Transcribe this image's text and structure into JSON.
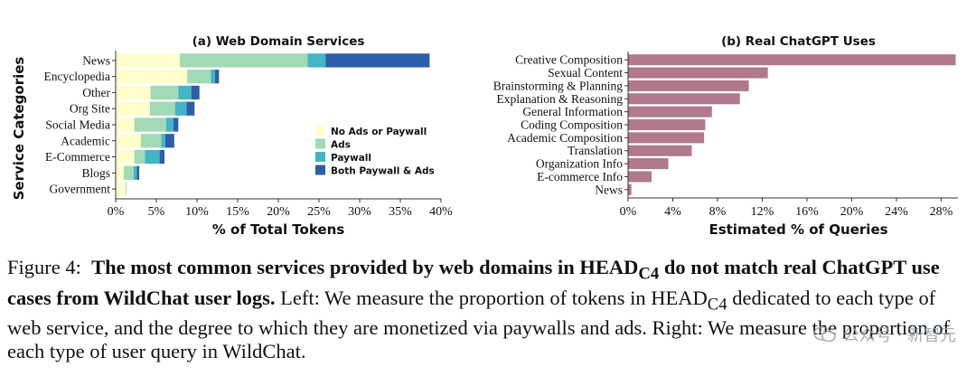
{
  "chart_data": [
    {
      "type": "bar",
      "orientation": "horizontal",
      "stacked": true,
      "title": "(a) Web Domain Services",
      "xlabel": "% of Total Tokens",
      "ylabel": "Service Categories",
      "categories": [
        "News",
        "Encyclopedia",
        "Other",
        "Org Site",
        "Social Media",
        "Academic",
        "E-Commerce",
        "Blogs",
        "Government"
      ],
      "xlim": [
        0,
        40
      ],
      "xticks": [
        "0%",
        "5%",
        "10%",
        "15%",
        "20%",
        "25%",
        "30%",
        "35%",
        "40%"
      ],
      "legend_position": "right",
      "series": [
        {
          "name": "No Ads or Paywall",
          "color": "#ffffcc",
          "values": [
            7.9,
            8.8,
            4.3,
            4.2,
            2.3,
            3.1,
            2.3,
            1.0,
            1.2
          ]
        },
        {
          "name": "Ads",
          "color": "#a1dab4",
          "values": [
            15.7,
            2.9,
            3.4,
            3.1,
            3.9,
            2.5,
            1.3,
            1.2,
            0.1
          ]
        },
        {
          "name": "Paywall",
          "color": "#41b6c4",
          "values": [
            2.2,
            0.5,
            1.6,
            1.4,
            0.9,
            0.5,
            1.8,
            0.4,
            0.0
          ]
        },
        {
          "name": "Both Paywall & Ads",
          "color": "#2c5faa",
          "values": [
            12.8,
            0.5,
            1.0,
            1.0,
            0.6,
            1.1,
            0.6,
            0.3,
            0.0
          ]
        }
      ]
    },
    {
      "type": "bar",
      "orientation": "horizontal",
      "title": "(b) Real ChatGPT Uses",
      "xlabel": "Estimated % of Queries",
      "categories": [
        "Creative Composition",
        "Sexual Content",
        "Brainstorming & Planning",
        "Explanation & Reasoning",
        "General Information",
        "Coding Composition",
        "Academic Composition",
        "Translation",
        "Organization Info",
        "E-commerce Info",
        "News"
      ],
      "values": [
        29.3,
        12.5,
        10.8,
        10.0,
        7.5,
        6.9,
        6.8,
        5.7,
        3.6,
        2.1,
        0.3
      ],
      "color": "#b0798e",
      "xlim": [
        0,
        29.5
      ],
      "xticks": [
        "0%",
        "4%",
        "8%",
        "12%",
        "16%",
        "20%",
        "24%",
        "28%"
      ]
    }
  ],
  "caption": {
    "label": "Figure 4:",
    "bold_part1": "The most common services provided by web domains in H",
    "bold_head": "EAD",
    "bold_sub": "C4",
    "bold_part2": " do not match real ChatGPT use cases from WildChat user logs.",
    "left_text": "Left: We measure the proportion of tokens in H",
    "head_sc": "EAD",
    "head_sub": "C4",
    "rest_text": " dedicated to each type of web service, and the degree to which they are monetized via paywalls and ads. Right: We measure the proportion of each type of user query in WildChat."
  },
  "watermark": {
    "text": "公众号 · 新智元",
    "icon": "wechat-icon"
  }
}
